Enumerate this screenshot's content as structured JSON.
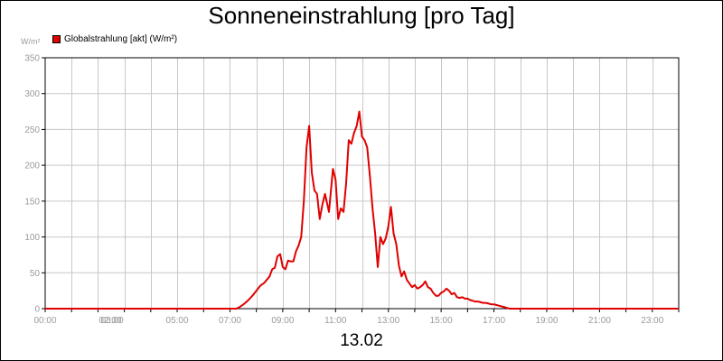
{
  "chart_data": {
    "type": "line",
    "title": "Sonneneinstrahlung [pro Tag]",
    "y_unit_label": "W/m²",
    "xlabel": "13.02",
    "ylim": [
      0,
      350
    ],
    "y_ticks": [
      0,
      50,
      100,
      150,
      200,
      250,
      300,
      350
    ],
    "y_tick_labels": [
      "0",
      "50",
      "100",
      "150",
      "200",
      "250",
      "300",
      "350"
    ],
    "x_range_hours": [
      0,
      24
    ],
    "x_ticks": [
      {
        "hour": 0,
        "label": "00:00"
      },
      {
        "hour": 2,
        "label": "02:00"
      },
      {
        "hour": 3,
        "label": "03:00"
      },
      {
        "hour": 5,
        "label": "05:00"
      },
      {
        "hour": 7,
        "label": "07:00"
      },
      {
        "hour": 9,
        "label": "09:00"
      },
      {
        "hour": 11,
        "label": "11:00"
      },
      {
        "hour": 13,
        "label": "13:00"
      },
      {
        "hour": 15,
        "label": "15:00"
      },
      {
        "hour": 17,
        "label": "17:00"
      },
      {
        "hour": 19,
        "label": "19:00"
      },
      {
        "hour": 21,
        "label": "21:00"
      },
      {
        "hour": 23,
        "label": "23:00"
      }
    ],
    "grid": true,
    "legend_position": "top-left",
    "colors": {
      "series": "#e00000",
      "grid": "#c8c8c8",
      "axis": "#000000",
      "tick_text": "#9a9a9a"
    },
    "series": [
      {
        "name": "Globalstrahlung [akt] (W/m²)",
        "x": [
          0,
          7.25,
          7.4,
          7.55,
          7.7,
          7.85,
          8.0,
          8.15,
          8.3,
          8.5,
          8.6,
          8.7,
          8.8,
          8.9,
          9.0,
          9.1,
          9.2,
          9.3,
          9.4,
          9.5,
          9.6,
          9.7,
          9.8,
          9.9,
          10.0,
          10.1,
          10.2,
          10.3,
          10.4,
          10.5,
          10.6,
          10.75,
          10.9,
          11.0,
          11.1,
          11.2,
          11.3,
          11.4,
          11.5,
          11.6,
          11.7,
          11.8,
          11.9,
          12.0,
          12.1,
          12.2,
          12.3,
          12.4,
          12.5,
          12.6,
          12.7,
          12.8,
          12.9,
          13.0,
          13.1,
          13.2,
          13.3,
          13.4,
          13.5,
          13.6,
          13.7,
          13.8,
          13.9,
          14.0,
          14.1,
          14.2,
          14.3,
          14.4,
          14.5,
          14.6,
          14.7,
          14.8,
          14.9,
          15.0,
          15.1,
          15.2,
          15.3,
          15.4,
          15.5,
          15.6,
          15.7,
          15.8,
          15.9,
          16.0,
          16.1,
          16.2,
          16.3,
          16.4,
          16.5,
          16.6,
          16.7,
          16.8,
          16.9,
          17.0,
          17.1,
          17.2,
          17.3,
          17.4,
          17.5,
          17.6,
          17.7,
          24
        ],
        "values": [
          0,
          0,
          3,
          7,
          12,
          18,
          25,
          32,
          36,
          45,
          55,
          57,
          73,
          76,
          58,
          55,
          67,
          66,
          66,
          80,
          88,
          100,
          150,
          225,
          255,
          190,
          165,
          160,
          125,
          145,
          160,
          135,
          195,
          180,
          125,
          140,
          135,
          175,
          235,
          230,
          245,
          255,
          275,
          240,
          235,
          225,
          185,
          140,
          105,
          58,
          100,
          90,
          98,
          115,
          142,
          105,
          90,
          60,
          45,
          52,
          40,
          35,
          30,
          33,
          28,
          30,
          33,
          38,
          30,
          28,
          22,
          18,
          18,
          22,
          24,
          28,
          25,
          20,
          22,
          16,
          15,
          16,
          14,
          14,
          12,
          11,
          10,
          10,
          9,
          8,
          8,
          7,
          6,
          6,
          5,
          4,
          3,
          2,
          1,
          0,
          0,
          0
        ]
      }
    ]
  }
}
